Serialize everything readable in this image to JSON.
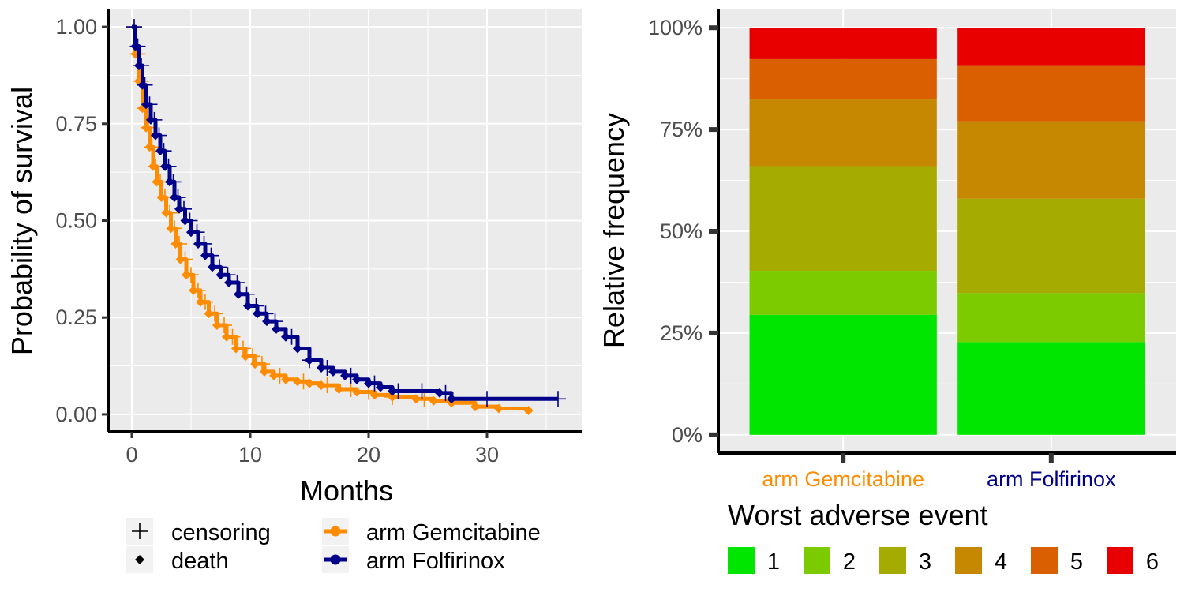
{
  "colors": {
    "gemcitabine": "#ff8c00",
    "folfirinox": "#00008b",
    "panel_bg": "#ebebeb",
    "grid": "#ffffff",
    "axis": "#000000",
    "tick_text": "#4d4d4d"
  },
  "chart_data": [
    {
      "type": "line",
      "subtype": "kaplan-meier",
      "xlabel": "Months",
      "ylabel": "Probability of survival",
      "xlim": [
        -2,
        38
      ],
      "ylim": [
        -0.045,
        1.045
      ],
      "x_ticks": [
        0,
        10,
        20,
        30
      ],
      "x_tick_labels": [
        "0",
        "10",
        "20",
        "30"
      ],
      "y_ticks": [
        0,
        0.25,
        0.5,
        0.75,
        1
      ],
      "y_tick_labels": [
        "0.00",
        "0.25",
        "0.50",
        "0.75",
        "1.00"
      ],
      "grid": true,
      "legend": {
        "position": "bottom",
        "marker_entries": [
          {
            "label": "censoring",
            "symbol": "plus"
          },
          {
            "label": "death",
            "symbol": "diamond"
          }
        ],
        "series_entries": [
          "arm Gemcitabine",
          "arm Folfirinox"
        ]
      },
      "series": [
        {
          "name": "arm Gemcitabine",
          "color": "#ff8c00",
          "x": [
            0,
            0.3,
            0.6,
            0.9,
            1.2,
            1.5,
            1.8,
            2.1,
            2.5,
            2.9,
            3.3,
            3.7,
            4.1,
            4.6,
            5.2,
            5.8,
            6.5,
            7.2,
            8.0,
            8.8,
            9.6,
            10.4,
            11.2,
            12.0,
            13.0,
            14.0,
            15.0,
            16.0,
            17.5,
            19.0,
            20.5,
            22.0,
            24.0,
            25.5,
            27.0,
            29.0,
            31.0,
            33.5
          ],
          "y": [
            1.0,
            0.93,
            0.86,
            0.79,
            0.74,
            0.69,
            0.64,
            0.6,
            0.56,
            0.52,
            0.48,
            0.44,
            0.4,
            0.36,
            0.32,
            0.29,
            0.26,
            0.23,
            0.2,
            0.17,
            0.15,
            0.13,
            0.11,
            0.1,
            0.09,
            0.085,
            0.08,
            0.075,
            0.065,
            0.058,
            0.05,
            0.045,
            0.04,
            0.035,
            0.03,
            0.02,
            0.015,
            0.01
          ],
          "censor_x": [
            0.2,
            0.5,
            0.8,
            1.1,
            1.4,
            1.7,
            2.0,
            2.4,
            2.8,
            3.2,
            3.6,
            4.0,
            4.5,
            5.0,
            5.6,
            6.2,
            7.0,
            7.8,
            8.5,
            9.4,
            10.2,
            11.0,
            12.5,
            14.5,
            16.5,
            18.5,
            20.0,
            22.0,
            24.7
          ],
          "end_x": 33.8
        },
        {
          "name": "arm Folfirinox",
          "color": "#00008b",
          "x": [
            0,
            0.3,
            0.6,
            0.9,
            1.2,
            1.6,
            2.0,
            2.4,
            2.8,
            3.2,
            3.6,
            4.0,
            4.5,
            5.0,
            5.6,
            6.2,
            6.8,
            7.5,
            8.2,
            9.0,
            9.8,
            10.6,
            11.4,
            12.2,
            13.0,
            14.0,
            15.0,
            16.0,
            17.0,
            18.0,
            19.0,
            20.0,
            21.0,
            22.0,
            24.0,
            26.0,
            27.0,
            30.0,
            33.0,
            36.0
          ],
          "y": [
            1.0,
            0.95,
            0.9,
            0.85,
            0.8,
            0.76,
            0.72,
            0.68,
            0.64,
            0.6,
            0.56,
            0.53,
            0.5,
            0.47,
            0.44,
            0.41,
            0.38,
            0.36,
            0.34,
            0.31,
            0.28,
            0.26,
            0.24,
            0.22,
            0.2,
            0.17,
            0.14,
            0.12,
            0.11,
            0.1,
            0.09,
            0.08,
            0.07,
            0.06,
            0.06,
            0.055,
            0.04,
            0.04,
            0.04,
            0.04
          ],
          "censor_x": [
            0.2,
            0.5,
            0.8,
            1.1,
            1.5,
            1.9,
            2.3,
            2.7,
            3.1,
            3.5,
            3.9,
            4.4,
            4.9,
            5.5,
            6.1,
            6.7,
            7.4,
            8.1,
            8.9,
            9.7,
            10.5,
            11.3,
            12.1,
            13.5,
            15.0,
            16.5,
            18.5,
            20.5,
            22.5,
            24.5,
            26.5,
            30.0,
            36.0
          ],
          "end_x": 36.0
        }
      ]
    },
    {
      "type": "bar",
      "subtype": "stacked-percent",
      "xlabel": "",
      "ylabel": "Relative frequency",
      "categories": [
        "arm Gemcitabine",
        "arm Folfirinox"
      ],
      "category_label_colors": [
        "#ff8c00",
        "#00008b"
      ],
      "ylim": [
        -0.045,
        1.045
      ],
      "y_ticks": [
        0,
        0.25,
        0.5,
        0.75,
        1
      ],
      "y_tick_labels": [
        "0%",
        "25%",
        "50%",
        "75%",
        "100%"
      ],
      "grid": true,
      "legend": {
        "position": "bottom",
        "title": "Worst adverse event"
      },
      "series": [
        {
          "name": "1",
          "color": "#00e600",
          "values": [
            0.295,
            0.228
          ]
        },
        {
          "name": "2",
          "color": "#7bcb00",
          "values": [
            0.108,
            0.12
          ]
        },
        {
          "name": "3",
          "color": "#a5ab00",
          "values": [
            0.257,
            0.232
          ]
        },
        {
          "name": "4",
          "color": "#c58800",
          "values": [
            0.165,
            0.19
          ]
        },
        {
          "name": "5",
          "color": "#d95f00",
          "values": [
            0.098,
            0.138
          ]
        },
        {
          "name": "6",
          "color": "#e80000",
          "values": [
            0.077,
            0.092
          ]
        }
      ]
    }
  ]
}
